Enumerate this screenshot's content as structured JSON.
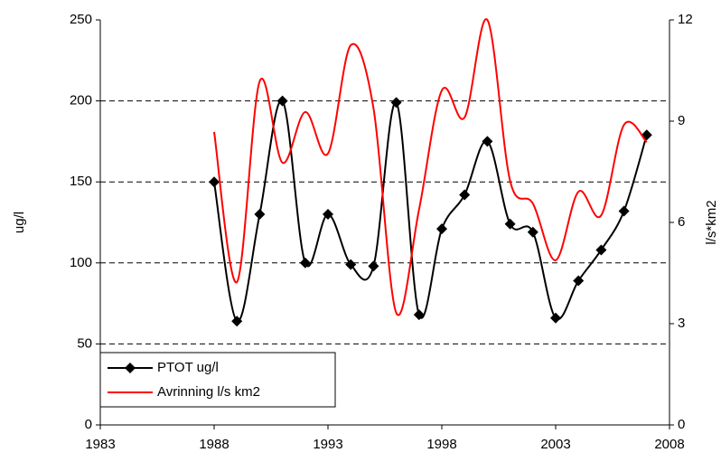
{
  "chart_data": {
    "type": "line",
    "x": [
      1988,
      1989,
      1990,
      1991,
      1992,
      1993,
      1994,
      1995,
      1996,
      1997,
      1998,
      1999,
      2000,
      2001,
      2002,
      2003,
      2004,
      2005,
      2006,
      2007
    ],
    "series": [
      {
        "name": "PTOT ug/l",
        "color": "#000000",
        "marker": "diamond",
        "axis": "y",
        "values": [
          150,
          64,
          130,
          200,
          100,
          130,
          99,
          98,
          199,
          68,
          121,
          142,
          175,
          124,
          119,
          66,
          89,
          108,
          132,
          179
        ]
      },
      {
        "name": "Avrinning l/s km2",
        "color": "#ff0000",
        "axis": "y2",
        "values": [
          8.68,
          4.23,
          10.18,
          7.77,
          9.27,
          8.04,
          11.25,
          9.38,
          3.32,
          6.38,
          9.91,
          9.11,
          12.0,
          7.23,
          6.56,
          4.88,
          6.91,
          6.21,
          8.89,
          8.38
        ]
      }
    ],
    "xlim": [
      1983,
      2008
    ],
    "xticks": [
      1983,
      1988,
      1993,
      1998,
      2003,
      2008
    ],
    "ylim": [
      0,
      250
    ],
    "yticks": [
      0,
      50,
      100,
      150,
      200,
      250
    ],
    "y2lim": [
      0,
      12
    ],
    "y2ticks": [
      0,
      3,
      6,
      9,
      12
    ],
    "ylabel": "ug/l",
    "y2label": "l/s*km2",
    "grid": true,
    "smooth": true,
    "legend": "lower left"
  }
}
